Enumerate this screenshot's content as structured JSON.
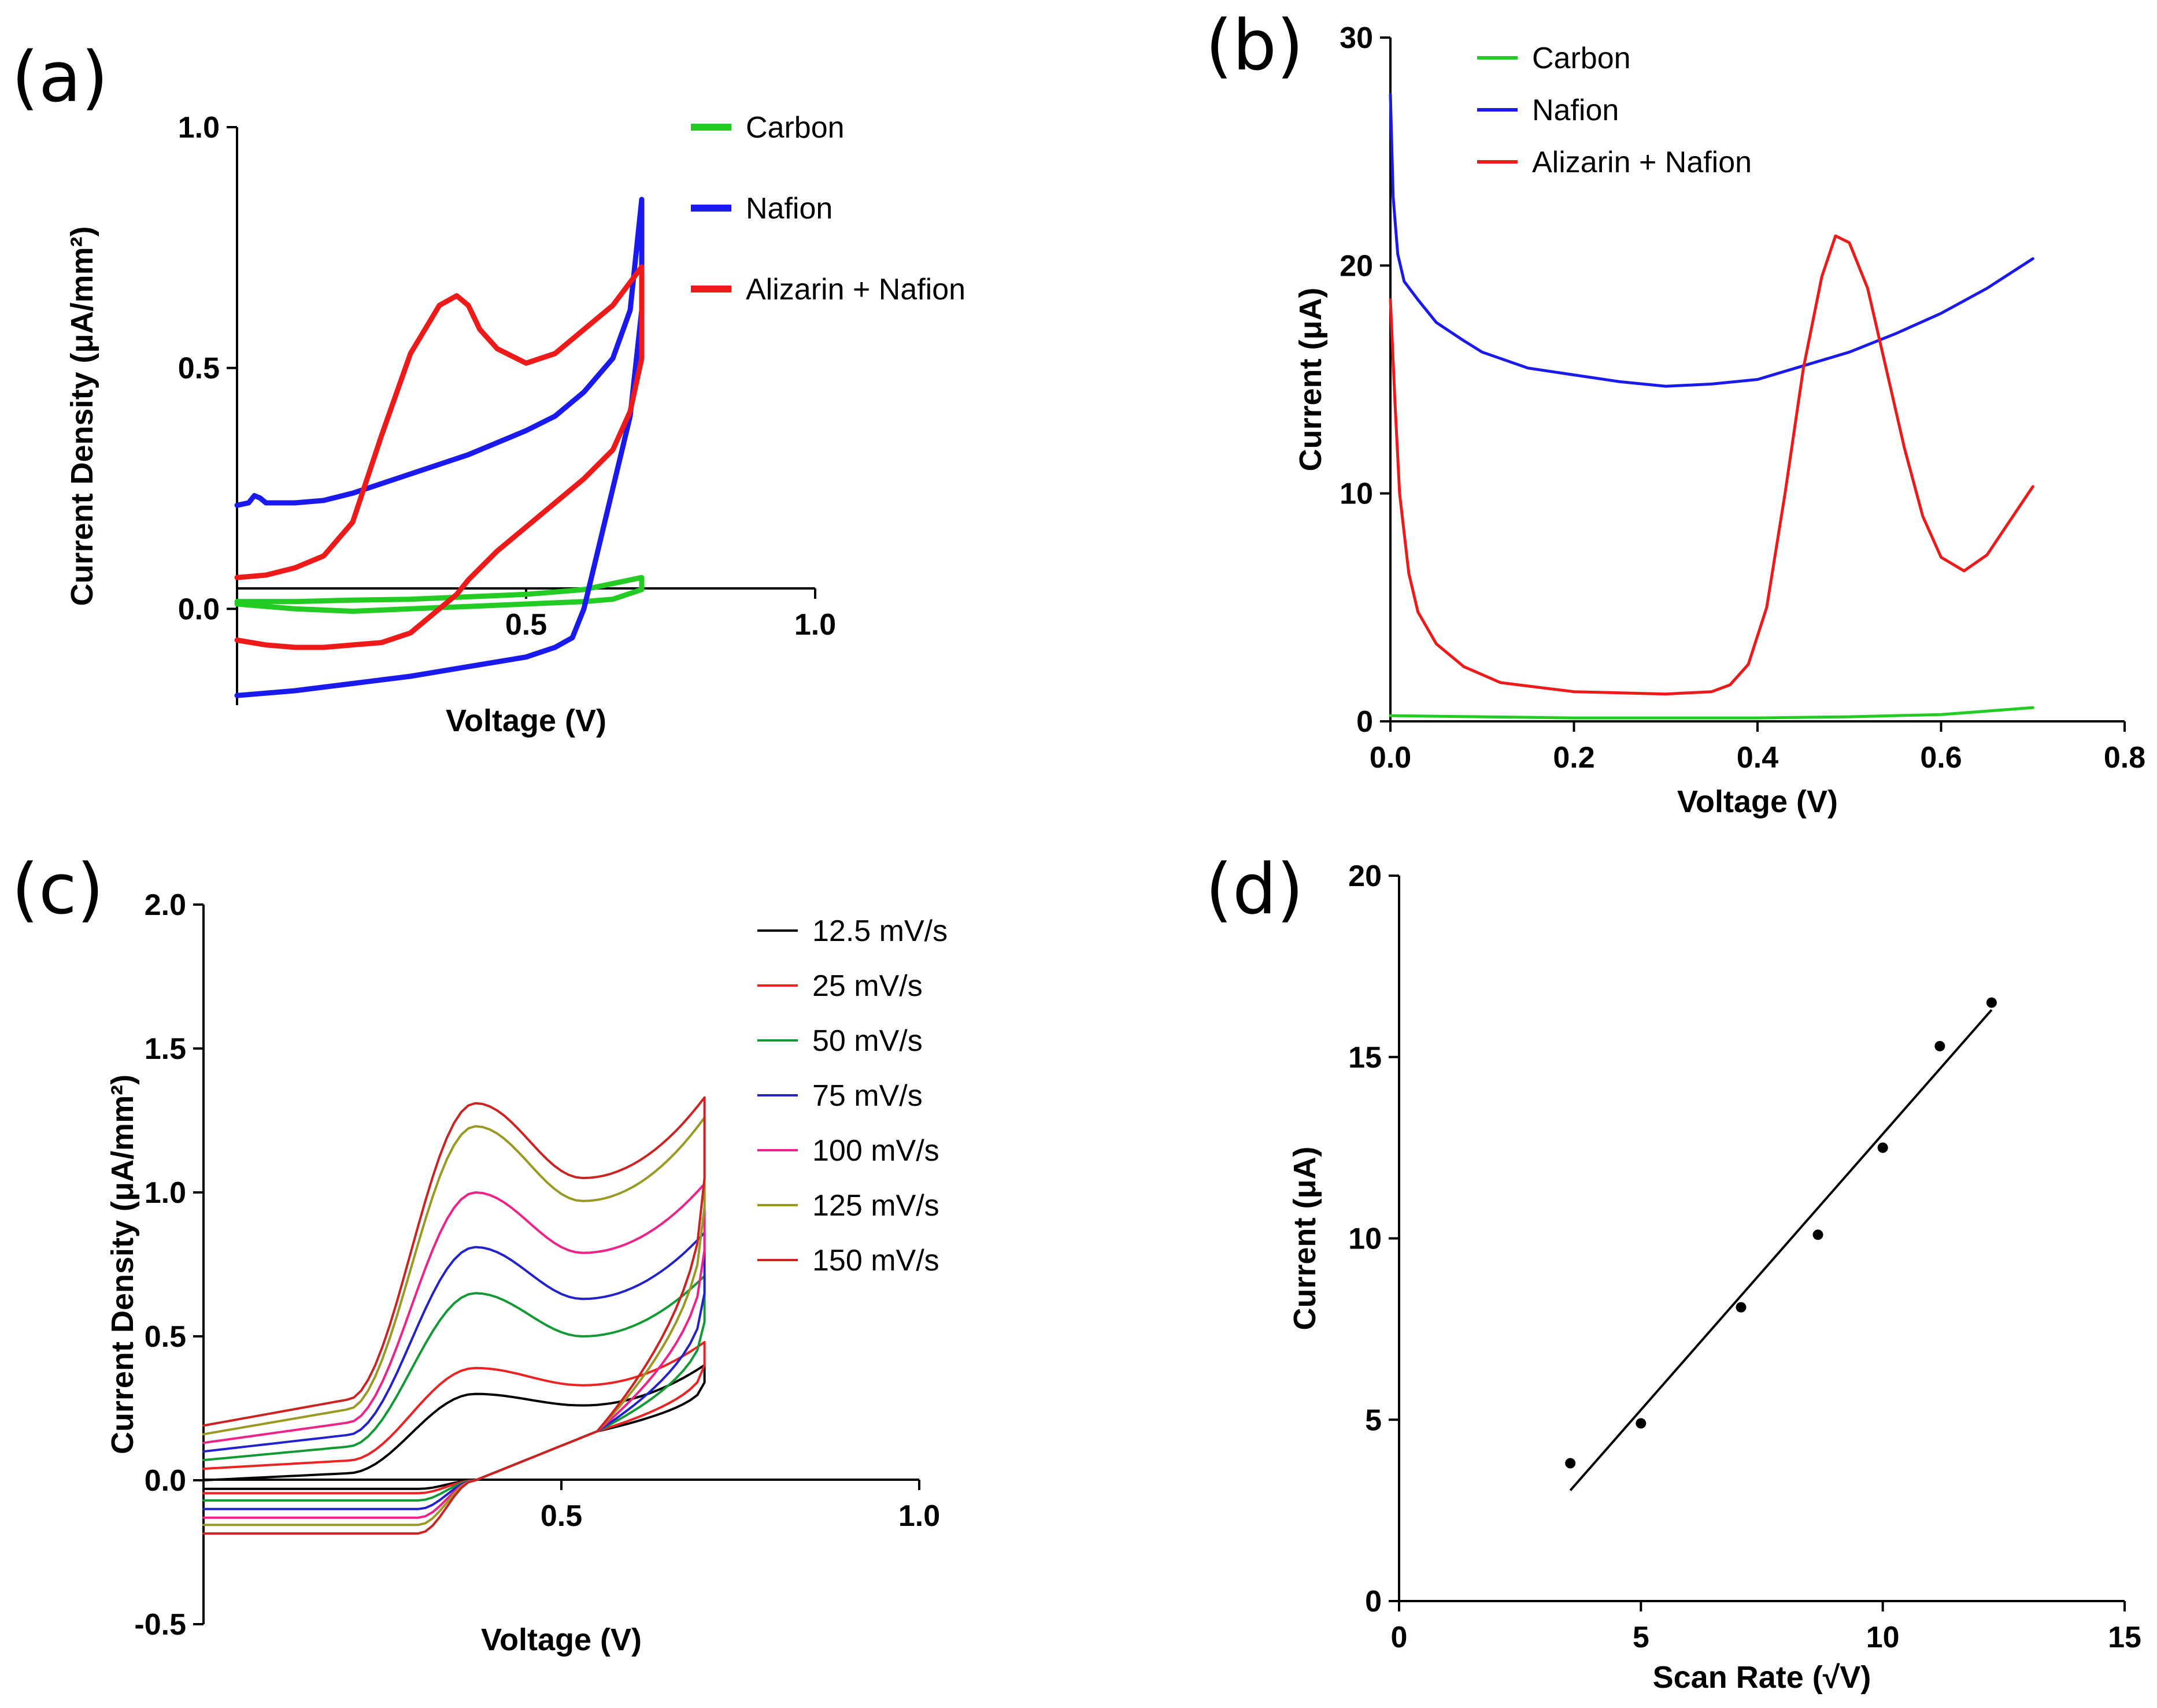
{
  "chart_data": [
    {
      "panel": "(a)",
      "type": "line",
      "xlabel": "Voltage (V)",
      "ylabel": "Current Density (μA/mm²)",
      "xlim": [
        0,
        1.0
      ],
      "ylim": [
        -0.2,
        1.0
      ],
      "xticks": [
        0.5,
        1.0
      ],
      "xtick_labels": [
        "0.5",
        "1.0"
      ],
      "yticks": [
        0.0,
        0.5,
        1.0
      ],
      "ytick_labels": [
        "0.0",
        "0.5",
        "1.0"
      ],
      "legend": [
        "Carbon",
        "Nafion",
        "Alizarin + Nafion"
      ],
      "legend_position": "top-right",
      "series": [
        {
          "name": "Carbon",
          "color": "#22cc22",
          "width": 9,
          "x": [
            0.0,
            0.1,
            0.2,
            0.3,
            0.4,
            0.5,
            0.6,
            0.65,
            0.7,
            0.7,
            0.6,
            0.5,
            0.4,
            0.3,
            0.2,
            0.1,
            0.0
          ],
          "y": [
            0.01,
            0.0,
            -0.005,
            0.0,
            0.005,
            0.01,
            0.015,
            0.02,
            0.04,
            0.065,
            0.04,
            0.03,
            0.025,
            0.02,
            0.018,
            0.015,
            0.015
          ]
        },
        {
          "name": "Nafion",
          "color": "#1a1aee",
          "width": 9,
          "x": [
            0.0,
            0.02,
            0.03,
            0.04,
            0.05,
            0.06,
            0.08,
            0.1,
            0.15,
            0.2,
            0.3,
            0.4,
            0.5,
            0.55,
            0.6,
            0.65,
            0.68,
            0.7,
            0.7,
            0.68,
            0.65,
            0.62,
            0.6,
            0.58,
            0.55,
            0.5,
            0.4,
            0.3,
            0.2,
            0.1,
            0.05,
            0.0
          ],
          "y": [
            0.215,
            0.22,
            0.235,
            0.23,
            0.22,
            0.22,
            0.22,
            0.22,
            0.225,
            0.24,
            0.28,
            0.32,
            0.37,
            0.4,
            0.45,
            0.52,
            0.62,
            0.85,
            0.62,
            0.4,
            0.25,
            0.1,
            0.0,
            -0.06,
            -0.08,
            -0.1,
            -0.12,
            -0.14,
            -0.155,
            -0.17,
            -0.175,
            -0.18
          ]
        },
        {
          "name": "Alizarin + Nafion",
          "color": "#ee1a1a",
          "width": 9,
          "x": [
            0.0,
            0.05,
            0.1,
            0.15,
            0.2,
            0.25,
            0.3,
            0.35,
            0.38,
            0.4,
            0.42,
            0.45,
            0.5,
            0.55,
            0.6,
            0.65,
            0.7,
            0.7,
            0.68,
            0.65,
            0.6,
            0.55,
            0.5,
            0.45,
            0.4,
            0.38,
            0.35,
            0.3,
            0.25,
            0.2,
            0.15,
            0.1,
            0.05,
            0.0
          ],
          "y": [
            0.065,
            0.07,
            0.085,
            0.11,
            0.18,
            0.36,
            0.53,
            0.63,
            0.65,
            0.63,
            0.58,
            0.54,
            0.51,
            0.53,
            0.58,
            0.63,
            0.71,
            0.52,
            0.41,
            0.33,
            0.27,
            0.22,
            0.17,
            0.12,
            0.06,
            0.03,
            0.0,
            -0.05,
            -0.07,
            -0.075,
            -0.08,
            -0.08,
            -0.075,
            -0.065
          ]
        }
      ]
    },
    {
      "panel": "(b)",
      "type": "line",
      "xlabel": "Voltage (V)",
      "ylabel": "Current (μA)",
      "xlim": [
        0,
        0.8
      ],
      "ylim": [
        0,
        30
      ],
      "xticks": [
        0.0,
        0.2,
        0.4,
        0.6,
        0.8
      ],
      "xtick_labels": [
        "0.0",
        "0.2",
        "0.4",
        "0.6",
        "0.8"
      ],
      "yticks": [
        0,
        10,
        20,
        30
      ],
      "ytick_labels": [
        "0",
        "10",
        "20",
        "30"
      ],
      "legend": [
        "Carbon",
        "Nafion",
        "Alizarin + Nafion"
      ],
      "legend_position": "top-left",
      "series": [
        {
          "name": "Carbon",
          "color": "#22cc22",
          "width": 5,
          "x": [
            0.0,
            0.1,
            0.2,
            0.3,
            0.4,
            0.5,
            0.6,
            0.65,
            0.7
          ],
          "y": [
            0.25,
            0.2,
            0.15,
            0.15,
            0.15,
            0.2,
            0.3,
            0.45,
            0.6
          ]
        },
        {
          "name": "Nafion",
          "color": "#1a1aee",
          "width": 5,
          "x": [
            0.0,
            0.003,
            0.008,
            0.015,
            0.03,
            0.05,
            0.08,
            0.1,
            0.15,
            0.2,
            0.25,
            0.3,
            0.35,
            0.4,
            0.45,
            0.5,
            0.55,
            0.6,
            0.65,
            0.7
          ],
          "y": [
            27.5,
            23.0,
            20.5,
            19.3,
            18.5,
            17.5,
            16.7,
            16.2,
            15.5,
            15.2,
            14.9,
            14.7,
            14.8,
            15.0,
            15.6,
            16.2,
            17.0,
            17.9,
            19.0,
            20.3
          ]
        },
        {
          "name": "Alizarin + Nafion",
          "color": "#ee1a1a",
          "width": 5,
          "x": [
            0.0,
            0.005,
            0.01,
            0.02,
            0.03,
            0.05,
            0.08,
            0.12,
            0.2,
            0.3,
            0.35,
            0.37,
            0.39,
            0.41,
            0.43,
            0.45,
            0.47,
            0.485,
            0.5,
            0.52,
            0.54,
            0.56,
            0.58,
            0.6,
            0.625,
            0.65,
            0.67,
            0.7
          ],
          "y": [
            18.5,
            14.0,
            10.0,
            6.5,
            4.8,
            3.4,
            2.4,
            1.7,
            1.3,
            1.2,
            1.3,
            1.6,
            2.5,
            5.0,
            10.0,
            15.5,
            19.5,
            21.3,
            21.0,
            19.0,
            15.5,
            12.0,
            9.0,
            7.2,
            6.6,
            7.3,
            8.5,
            10.3
          ]
        }
      ]
    },
    {
      "panel": "(c)",
      "type": "line",
      "xlabel": "Voltage (V)",
      "ylabel": "Current Density (μA/mm²)",
      "xlim": [
        0,
        1.0
      ],
      "ylim": [
        -0.5,
        2.0
      ],
      "xticks": [
        0.5,
        1.0
      ],
      "xtick_labels": [
        "0.5",
        "1.0"
      ],
      "yticks": [
        -0.5,
        0.0,
        0.5,
        1.0,
        1.5,
        2.0
      ],
      "ytick_labels": [
        "-0.5",
        "0.0",
        "0.5",
        "1.0",
        "1.5",
        "2.0"
      ],
      "legend": [
        "12.5 mV/s",
        "25 mV/s",
        "50 mV/s",
        "75 mV/s",
        "100 mV/s",
        "125 mV/s",
        "150 mV/s"
      ],
      "legend_position": "top-right",
      "series": [
        {
          "name": "12.5 mV/s",
          "color": "#000000",
          "base": 0.0,
          "peak": 0.3,
          "valley": 0.26,
          "end_upper": 0.4,
          "end_lower": 0.34,
          "lower": -0.03
        },
        {
          "name": "25 mV/s",
          "color": "#ee2222",
          "base": 0.04,
          "peak": 0.39,
          "valley": 0.33,
          "end_upper": 0.48,
          "end_lower": 0.4,
          "lower": -0.045
        },
        {
          "name": "50 mV/s",
          "color": "#119933",
          "base": 0.07,
          "peak": 0.65,
          "valley": 0.5,
          "end_upper": 0.71,
          "end_lower": 0.55,
          "lower": -0.07
        },
        {
          "name": "75 mV/s",
          "color": "#2222cc",
          "base": 0.1,
          "peak": 0.81,
          "valley": 0.63,
          "end_upper": 0.86,
          "end_lower": 0.65,
          "lower": -0.1
        },
        {
          "name": "100 mV/s",
          "color": "#ee2288",
          "base": 0.13,
          "peak": 1.0,
          "valley": 0.79,
          "end_upper": 1.03,
          "end_lower": 0.8,
          "lower": -0.13
        },
        {
          "name": "125 mV/s",
          "color": "#999922",
          "base": 0.16,
          "peak": 1.23,
          "valley": 0.97,
          "end_upper": 1.26,
          "end_lower": 0.95,
          "lower": -0.155
        },
        {
          "name": "150 mV/s",
          "color": "#cc2222",
          "base": 0.19,
          "peak": 1.31,
          "valley": 1.05,
          "end_upper": 1.33,
          "end_lower": 1.05,
          "lower": -0.185
        }
      ]
    },
    {
      "panel": "(d)",
      "type": "scatter",
      "xlabel": "Scan Rate (√V)",
      "ylabel": "Current (μA)",
      "xlim": [
        0,
        15
      ],
      "ylim": [
        0,
        20
      ],
      "xticks": [
        0,
        5,
        10,
        15
      ],
      "xtick_labels": [
        "0",
        "5",
        "10",
        "15"
      ],
      "yticks": [
        0,
        5,
        10,
        15,
        20
      ],
      "ytick_labels": [
        "0",
        "5",
        "10",
        "15",
        "20"
      ],
      "points": [
        {
          "x": 3.54,
          "y": 3.8
        },
        {
          "x": 5.0,
          "y": 4.9
        },
        {
          "x": 7.07,
          "y": 8.1
        },
        {
          "x": 8.66,
          "y": 10.1
        },
        {
          "x": 10.0,
          "y": 12.5
        },
        {
          "x": 11.18,
          "y": 15.3
        },
        {
          "x": 12.25,
          "y": 16.5
        }
      ],
      "fit_line": {
        "x": [
          3.54,
          12.25
        ],
        "y": [
          3.05,
          16.3
        ]
      }
    }
  ]
}
